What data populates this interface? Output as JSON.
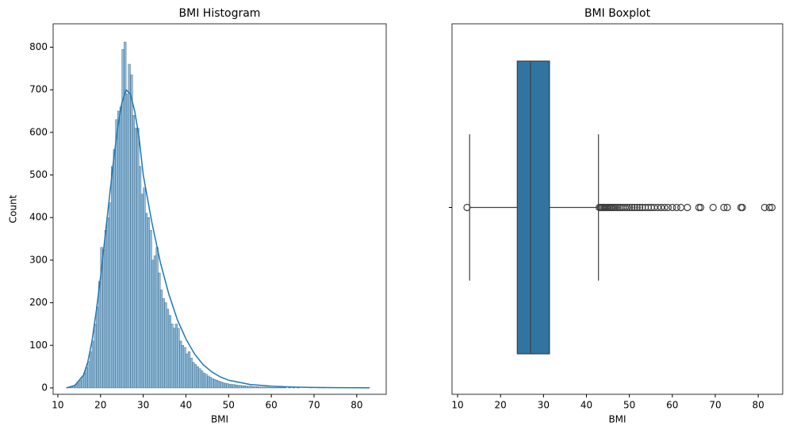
{
  "chart_data": [
    {
      "type": "histogram",
      "title": "BMI Histogram",
      "xlabel": "BMI",
      "ylabel": "Count",
      "bins": [
        12,
        12.5,
        13,
        13.5,
        14,
        14.5,
        15,
        15.5,
        16,
        16.5,
        17,
        17.5,
        18,
        18.5,
        19,
        19.5,
        20,
        20.5,
        21,
        21.5,
        22,
        22.5,
        23,
        23.5,
        24,
        24.5,
        25,
        25.5,
        26,
        26.5,
        27,
        27.5,
        28,
        28.5,
        29,
        29.5,
        30,
        30.5,
        31,
        31.5,
        32,
        32.5,
        33,
        33.5,
        34,
        34.5,
        35,
        35.5,
        36,
        36.5,
        37,
        37.5,
        38,
        38.5,
        39,
        39.5,
        40,
        40.5,
        41,
        41.5,
        42,
        42.5,
        43,
        43.5,
        44,
        44.5,
        45,
        45.5,
        46,
        46.5,
        47,
        47.5,
        48,
        48.5,
        49,
        49.5,
        50,
        50.5,
        51,
        51.5,
        52,
        52.5,
        53,
        53.5,
        54,
        54.5,
        55,
        55.5,
        56,
        56.5,
        57,
        57.5,
        58,
        58.5,
        59,
        59.5,
        60,
        60.5,
        61,
        61.5,
        62,
        62.5,
        63,
        63.5,
        64,
        64.5,
        65,
        65.5,
        66,
        66.5,
        67,
        67.5,
        68,
        68.5,
        69,
        69.5,
        70,
        70.5,
        71,
        71.5,
        72,
        72.5,
        73,
        73.5,
        74,
        74.5,
        75,
        75.5,
        76,
        76.5,
        77,
        77.5,
        78,
        78.5,
        79,
        79.5,
        80,
        80.5,
        81,
        81.5,
        82,
        82.5,
        83
      ],
      "values": [
        1,
        2,
        3,
        5,
        8,
        12,
        18,
        25,
        35,
        48,
        62,
        85,
        110,
        150,
        190,
        250,
        330,
        325,
        370,
        400,
        435,
        520,
        560,
        630,
        650,
        660,
        795,
        812,
        690,
        760,
        735,
        640,
        610,
        610,
        520,
        455,
        470,
        410,
        400,
        370,
        300,
        310,
        330,
        270,
        230,
        210,
        200,
        185,
        170,
        150,
        140,
        150,
        140,
        110,
        100,
        95,
        80,
        85,
        70,
        60,
        55,
        50,
        45,
        40,
        35,
        32,
        28,
        25,
        22,
        20,
        18,
        16,
        14,
        12,
        11,
        10,
        9,
        8,
        8,
        7,
        6,
        6,
        5,
        5,
        4,
        4,
        4,
        3,
        3,
        3,
        2,
        2,
        2,
        2,
        2,
        1,
        1,
        1,
        1,
        1,
        1,
        1,
        1,
        0,
        1,
        0,
        1,
        0,
        1,
        0,
        0,
        0,
        0,
        0,
        1,
        0,
        0,
        0,
        1,
        0,
        1,
        0,
        0,
        0,
        0,
        0,
        0,
        1,
        0,
        0,
        0,
        0,
        0,
        0,
        0,
        0,
        0,
        0,
        0,
        1,
        0,
        1
      ],
      "color": "#1f77b4",
      "edgecolor": "#4a6f8a",
      "kde": {
        "x": [
          12,
          14,
          16,
          17,
          18,
          19,
          20,
          21,
          22,
          23,
          24,
          25,
          26,
          27,
          28,
          29,
          30,
          32,
          34,
          36,
          38,
          40,
          42,
          44,
          46,
          48,
          50,
          55,
          60,
          65,
          70,
          75,
          80,
          83
        ],
        "y": [
          0,
          6,
          30,
          60,
          110,
          180,
          260,
          350,
          440,
          530,
          610,
          670,
          700,
          690,
          650,
          590,
          500,
          390,
          295,
          220,
          160,
          115,
          80,
          55,
          38,
          26,
          18,
          8,
          4,
          2,
          1,
          0.5,
          0.3,
          0.2
        ],
        "color": "#1f77b4"
      },
      "xlim": [
        8.9,
        86.9
      ],
      "xticks": [
        10,
        20,
        30,
        40,
        50,
        60,
        70,
        80
      ],
      "ylim": [
        -15,
        855
      ],
      "yticks": [
        0,
        100,
        200,
        300,
        400,
        500,
        600,
        700,
        800
      ]
    },
    {
      "type": "box",
      "title": "BMI Boxplot",
      "xlabel": "BMI",
      "color": "#3274a1",
      "linecolor": "#3f3f3f",
      "whislo": 12.8,
      "q1": 23.9,
      "med": 27.0,
      "q3": 31.4,
      "whishi": 42.8,
      "fliers": [
        12.2,
        43.0,
        43.3,
        43.6,
        43.9,
        44.2,
        44.5,
        44.8,
        45.1,
        45.4,
        45.7,
        46.0,
        46.4,
        46.8,
        47.2,
        47.6,
        48.0,
        48.5,
        49.0,
        49.5,
        50.0,
        50.6,
        51.2,
        51.8,
        52.4,
        53.0,
        53.7,
        54.4,
        55.1,
        55.8,
        56.6,
        57.4,
        58.2,
        59.0,
        60.0,
        61.0,
        62.0,
        63.5,
        66.2,
        66.6,
        69.5,
        72.0,
        72.8,
        76.0,
        76.3,
        81.5,
        82.6,
        83.2
      ],
      "xlim": [
        8.7,
        85.7
      ],
      "xticks": [
        10,
        20,
        30,
        40,
        50,
        60,
        70,
        80
      ]
    }
  ]
}
